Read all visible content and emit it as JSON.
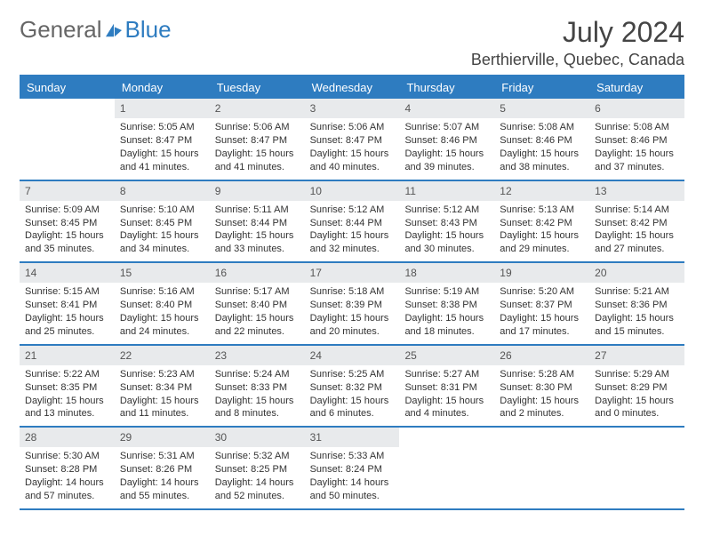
{
  "brand": {
    "part1": "General",
    "part2": "Blue"
  },
  "title": {
    "month": "July 2024",
    "location": "Berthierville, Quebec, Canada"
  },
  "colors": {
    "accent": "#2e7cc0",
    "dow_bg": "#2e7cc0",
    "dow_text": "#ffffff",
    "daynum_bg": "#e8eaec",
    "text": "#333333",
    "background": "#ffffff"
  },
  "dow": [
    "Sunday",
    "Monday",
    "Tuesday",
    "Wednesday",
    "Thursday",
    "Friday",
    "Saturday"
  ],
  "labels": {
    "sunrise": "Sunrise:",
    "sunset": "Sunset:",
    "daylight": "Daylight:"
  },
  "weeks": [
    [
      {
        "n": "",
        "empty": true
      },
      {
        "n": "1",
        "sr": "5:05 AM",
        "ss": "8:47 PM",
        "dl": "15 hours and 41 minutes."
      },
      {
        "n": "2",
        "sr": "5:06 AM",
        "ss": "8:47 PM",
        "dl": "15 hours and 41 minutes."
      },
      {
        "n": "3",
        "sr": "5:06 AM",
        "ss": "8:47 PM",
        "dl": "15 hours and 40 minutes."
      },
      {
        "n": "4",
        "sr": "5:07 AM",
        "ss": "8:46 PM",
        "dl": "15 hours and 39 minutes."
      },
      {
        "n": "5",
        "sr": "5:08 AM",
        "ss": "8:46 PM",
        "dl": "15 hours and 38 minutes."
      },
      {
        "n": "6",
        "sr": "5:08 AM",
        "ss": "8:46 PM",
        "dl": "15 hours and 37 minutes."
      }
    ],
    [
      {
        "n": "7",
        "sr": "5:09 AM",
        "ss": "8:45 PM",
        "dl": "15 hours and 35 minutes."
      },
      {
        "n": "8",
        "sr": "5:10 AM",
        "ss": "8:45 PM",
        "dl": "15 hours and 34 minutes."
      },
      {
        "n": "9",
        "sr": "5:11 AM",
        "ss": "8:44 PM",
        "dl": "15 hours and 33 minutes."
      },
      {
        "n": "10",
        "sr": "5:12 AM",
        "ss": "8:44 PM",
        "dl": "15 hours and 32 minutes."
      },
      {
        "n": "11",
        "sr": "5:12 AM",
        "ss": "8:43 PM",
        "dl": "15 hours and 30 minutes."
      },
      {
        "n": "12",
        "sr": "5:13 AM",
        "ss": "8:42 PM",
        "dl": "15 hours and 29 minutes."
      },
      {
        "n": "13",
        "sr": "5:14 AM",
        "ss": "8:42 PM",
        "dl": "15 hours and 27 minutes."
      }
    ],
    [
      {
        "n": "14",
        "sr": "5:15 AM",
        "ss": "8:41 PM",
        "dl": "15 hours and 25 minutes."
      },
      {
        "n": "15",
        "sr": "5:16 AM",
        "ss": "8:40 PM",
        "dl": "15 hours and 24 minutes."
      },
      {
        "n": "16",
        "sr": "5:17 AM",
        "ss": "8:40 PM",
        "dl": "15 hours and 22 minutes."
      },
      {
        "n": "17",
        "sr": "5:18 AM",
        "ss": "8:39 PM",
        "dl": "15 hours and 20 minutes."
      },
      {
        "n": "18",
        "sr": "5:19 AM",
        "ss": "8:38 PM",
        "dl": "15 hours and 18 minutes."
      },
      {
        "n": "19",
        "sr": "5:20 AM",
        "ss": "8:37 PM",
        "dl": "15 hours and 17 minutes."
      },
      {
        "n": "20",
        "sr": "5:21 AM",
        "ss": "8:36 PM",
        "dl": "15 hours and 15 minutes."
      }
    ],
    [
      {
        "n": "21",
        "sr": "5:22 AM",
        "ss": "8:35 PM",
        "dl": "15 hours and 13 minutes."
      },
      {
        "n": "22",
        "sr": "5:23 AM",
        "ss": "8:34 PM",
        "dl": "15 hours and 11 minutes."
      },
      {
        "n": "23",
        "sr": "5:24 AM",
        "ss": "8:33 PM",
        "dl": "15 hours and 8 minutes."
      },
      {
        "n": "24",
        "sr": "5:25 AM",
        "ss": "8:32 PM",
        "dl": "15 hours and 6 minutes."
      },
      {
        "n": "25",
        "sr": "5:27 AM",
        "ss": "8:31 PM",
        "dl": "15 hours and 4 minutes."
      },
      {
        "n": "26",
        "sr": "5:28 AM",
        "ss": "8:30 PM",
        "dl": "15 hours and 2 minutes."
      },
      {
        "n": "27",
        "sr": "5:29 AM",
        "ss": "8:29 PM",
        "dl": "15 hours and 0 minutes."
      }
    ],
    [
      {
        "n": "28",
        "sr": "5:30 AM",
        "ss": "8:28 PM",
        "dl": "14 hours and 57 minutes."
      },
      {
        "n": "29",
        "sr": "5:31 AM",
        "ss": "8:26 PM",
        "dl": "14 hours and 55 minutes."
      },
      {
        "n": "30",
        "sr": "5:32 AM",
        "ss": "8:25 PM",
        "dl": "14 hours and 52 minutes."
      },
      {
        "n": "31",
        "sr": "5:33 AM",
        "ss": "8:24 PM",
        "dl": "14 hours and 50 minutes."
      },
      {
        "n": "",
        "empty": true
      },
      {
        "n": "",
        "empty": true
      },
      {
        "n": "",
        "empty": true
      }
    ]
  ]
}
